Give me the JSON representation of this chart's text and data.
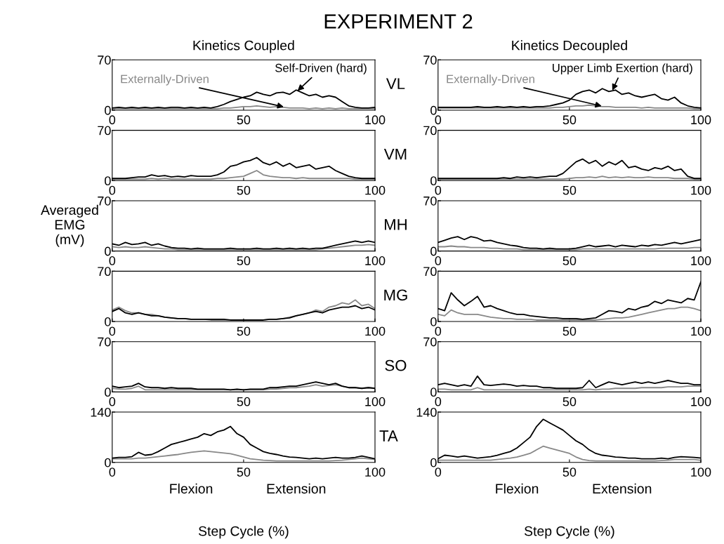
{
  "chart_data": [
    {
      "type": "line",
      "title": "EXPERIMENT 2",
      "subtitle": "Kinetics Coupled",
      "x": [
        0,
        2.5,
        5,
        7.5,
        10,
        12.5,
        15,
        17.5,
        20,
        22.5,
        25,
        27.5,
        30,
        32.5,
        35,
        37.5,
        40,
        42.5,
        45,
        47.5,
        50,
        52.5,
        55,
        57.5,
        60,
        62.5,
        65,
        67.5,
        70,
        72.5,
        75,
        77.5,
        80,
        82.5,
        85,
        87.5,
        90,
        92.5,
        95,
        97.5,
        100
      ],
      "xlim": [
        0,
        100
      ],
      "xticks": [
        0,
        50,
        100
      ],
      "ylim": [
        0,
        70
      ],
      "yticks": [
        0,
        70
      ],
      "grid": false,
      "legend": false,
      "annotations": [
        {
          "text": "Externally-Driven",
          "x": 66,
          "y": 4
        },
        {
          "text": "Self-Driven (hard)",
          "x": 70,
          "y": 25
        }
      ],
      "series": [
        {
          "color": "#888888",
          "values": [
            2,
            2,
            2,
            2,
            2,
            2,
            2,
            2,
            2,
            2,
            2,
            2,
            2,
            2,
            2,
            2,
            2,
            3,
            3,
            4,
            5,
            5,
            6,
            5,
            4,
            5,
            4,
            3,
            3,
            3,
            2,
            3,
            2,
            3,
            2,
            3,
            2,
            2,
            2,
            2,
            2
          ]
        },
        {
          "color": "#000000",
          "values": [
            3,
            4,
            3,
            4,
            3,
            4,
            3,
            4,
            3,
            4,
            4,
            3,
            4,
            3,
            4,
            3,
            5,
            8,
            12,
            15,
            18,
            20,
            25,
            22,
            20,
            24,
            25,
            22,
            28,
            24,
            20,
            22,
            18,
            20,
            18,
            12,
            6,
            4,
            3,
            3,
            4
          ]
        }
      ]
    },
    {
      "type": "line",
      "subtitle": "Kinetics Decoupled",
      "ylabel": "VL",
      "x": [
        0,
        2.5,
        5,
        7.5,
        10,
        12.5,
        15,
        17.5,
        20,
        22.5,
        25,
        27.5,
        30,
        32.5,
        35,
        37.5,
        40,
        42.5,
        45,
        47.5,
        50,
        52.5,
        55,
        57.5,
        60,
        62.5,
        65,
        67.5,
        70,
        72.5,
        75,
        77.5,
        80,
        82.5,
        85,
        87.5,
        90,
        92.5,
        95,
        97.5,
        100
      ],
      "xlim": [
        0,
        100
      ],
      "xticks": [
        0,
        50,
        100
      ],
      "ylim": [
        0,
        70
      ],
      "yticks": [
        0,
        70
      ],
      "grid": false,
      "legend": false,
      "annotations": [
        {
          "text": "Externally-Driven",
          "x": 63,
          "y": 5
        },
        {
          "text": "Upper Limb Exertion (hard)",
          "x": 66,
          "y": 25
        }
      ],
      "series": [
        {
          "color": "#888888",
          "values": [
            3,
            3,
            3,
            3,
            3,
            3,
            3,
            3,
            3,
            3,
            3,
            3,
            3,
            3,
            3,
            3,
            3,
            3,
            4,
            4,
            5,
            6,
            6,
            7,
            6,
            5,
            5,
            4,
            4,
            4,
            4,
            3,
            4,
            3,
            3,
            3,
            3,
            3,
            3,
            2,
            2
          ]
        },
        {
          "color": "#000000",
          "values": [
            4,
            4,
            4,
            4,
            4,
            4,
            5,
            4,
            4,
            5,
            4,
            5,
            4,
            5,
            4,
            5,
            5,
            6,
            8,
            10,
            14,
            22,
            26,
            28,
            24,
            30,
            26,
            28,
            22,
            24,
            20,
            18,
            20,
            22,
            16,
            14,
            18,
            10,
            6,
            4,
            3
          ]
        }
      ]
    },
    {
      "type": "line",
      "x": [
        0,
        2.5,
        5,
        7.5,
        10,
        12.5,
        15,
        17.5,
        20,
        22.5,
        25,
        27.5,
        30,
        32.5,
        35,
        37.5,
        40,
        42.5,
        45,
        47.5,
        50,
        52.5,
        55,
        57.5,
        60,
        62.5,
        65,
        67.5,
        70,
        72.5,
        75,
        77.5,
        80,
        82.5,
        85,
        87.5,
        90,
        92.5,
        95,
        97.5,
        100
      ],
      "xlim": [
        0,
        100
      ],
      "xticks": [
        0,
        50,
        100
      ],
      "ylim": [
        0,
        70
      ],
      "yticks": [
        0,
        70
      ],
      "grid": false,
      "legend": false,
      "series": [
        {
          "color": "#888888",
          "values": [
            2,
            2,
            2,
            2,
            2,
            2,
            3,
            2,
            3,
            2,
            2,
            2,
            2,
            2,
            2,
            2,
            3,
            3,
            4,
            5,
            6,
            10,
            14,
            8,
            6,
            5,
            4,
            4,
            3,
            4,
            3,
            3,
            3,
            3,
            3,
            3,
            3,
            2,
            2,
            2,
            2
          ]
        },
        {
          "color": "#000000",
          "values": [
            3,
            3,
            3,
            4,
            5,
            5,
            8,
            6,
            7,
            5,
            6,
            5,
            7,
            6,
            6,
            6,
            8,
            12,
            20,
            22,
            26,
            28,
            32,
            25,
            22,
            26,
            20,
            24,
            18,
            20,
            22,
            16,
            18,
            20,
            14,
            10,
            6,
            4,
            3,
            3,
            3
          ]
        }
      ]
    },
    {
      "type": "line",
      "ylabel": "VM",
      "x": [
        0,
        2.5,
        5,
        7.5,
        10,
        12.5,
        15,
        17.5,
        20,
        22.5,
        25,
        27.5,
        30,
        32.5,
        35,
        37.5,
        40,
        42.5,
        45,
        47.5,
        50,
        52.5,
        55,
        57.5,
        60,
        62.5,
        65,
        67.5,
        70,
        72.5,
        75,
        77.5,
        80,
        82.5,
        85,
        87.5,
        90,
        92.5,
        95,
        97.5,
        100
      ],
      "xlim": [
        0,
        100
      ],
      "xticks": [
        0,
        50,
        100
      ],
      "ylim": [
        0,
        70
      ],
      "yticks": [
        0,
        70
      ],
      "grid": false,
      "legend": false,
      "series": [
        {
          "color": "#888888",
          "values": [
            2,
            2,
            2,
            2,
            2,
            2,
            2,
            2,
            2,
            2,
            2,
            2,
            2,
            2,
            2,
            2,
            2,
            2,
            2,
            2,
            3,
            4,
            4,
            5,
            4,
            6,
            4,
            5,
            4,
            5,
            4,
            4,
            5,
            4,
            4,
            4,
            3,
            3,
            3,
            2,
            2
          ]
        },
        {
          "color": "#000000",
          "values": [
            3,
            3,
            3,
            3,
            3,
            3,
            3,
            3,
            3,
            3,
            4,
            3,
            5,
            4,
            5,
            4,
            5,
            6,
            6,
            10,
            18,
            26,
            30,
            24,
            28,
            20,
            26,
            22,
            28,
            18,
            20,
            16,
            14,
            18,
            16,
            20,
            14,
            16,
            6,
            3,
            3
          ]
        }
      ]
    },
    {
      "type": "line",
      "ylabel": "Averaged\nEMG\n(mV)",
      "x": [
        0,
        2.5,
        5,
        7.5,
        10,
        12.5,
        15,
        17.5,
        20,
        22.5,
        25,
        27.5,
        30,
        32.5,
        35,
        37.5,
        40,
        42.5,
        45,
        47.5,
        50,
        52.5,
        55,
        57.5,
        60,
        62.5,
        65,
        67.5,
        70,
        72.5,
        75,
        77.5,
        80,
        82.5,
        85,
        87.5,
        90,
        92.5,
        95,
        97.5,
        100
      ],
      "xlim": [
        0,
        100
      ],
      "xticks": [
        0,
        50,
        100
      ],
      "ylim": [
        0,
        70
      ],
      "yticks": [
        0,
        70
      ],
      "grid": false,
      "legend": false,
      "series": [
        {
          "color": "#888888",
          "values": [
            6,
            5,
            6,
            5,
            5,
            6,
            5,
            4,
            3,
            3,
            2,
            2,
            2,
            2,
            2,
            2,
            2,
            2,
            2,
            2,
            2,
            2,
            2,
            2,
            2,
            2,
            2,
            2,
            2,
            2,
            2,
            2,
            3,
            4,
            5,
            6,
            7,
            8,
            8,
            9,
            8
          ]
        },
        {
          "color": "#000000",
          "values": [
            10,
            8,
            12,
            9,
            10,
            12,
            8,
            10,
            7,
            5,
            4,
            4,
            3,
            4,
            3,
            3,
            3,
            3,
            4,
            3,
            3,
            3,
            4,
            3,
            3,
            4,
            3,
            4,
            3,
            4,
            3,
            4,
            4,
            6,
            8,
            10,
            12,
            14,
            12,
            14,
            12
          ]
        }
      ]
    },
    {
      "type": "line",
      "ylabel": "MH",
      "x": [
        0,
        2.5,
        5,
        7.5,
        10,
        12.5,
        15,
        17.5,
        20,
        22.5,
        25,
        27.5,
        30,
        32.5,
        35,
        37.5,
        40,
        42.5,
        45,
        47.5,
        50,
        52.5,
        55,
        57.5,
        60,
        62.5,
        65,
        67.5,
        70,
        72.5,
        75,
        77.5,
        80,
        82.5,
        85,
        87.5,
        90,
        92.5,
        95,
        97.5,
        100
      ],
      "xlim": [
        0,
        100
      ],
      "xticks": [
        0,
        50,
        100
      ],
      "ylim": [
        0,
        70
      ],
      "yticks": [
        0,
        70
      ],
      "grid": false,
      "legend": false,
      "series": [
        {
          "color": "#888888",
          "values": [
            6,
            6,
            7,
            6,
            6,
            5,
            5,
            5,
            4,
            4,
            3,
            3,
            3,
            2,
            2,
            2,
            2,
            2,
            2,
            2,
            2,
            2,
            3,
            3,
            3,
            3,
            3,
            3,
            3,
            3,
            3,
            3,
            3,
            3,
            4,
            4,
            4,
            4,
            4,
            5,
            5
          ]
        },
        {
          "color": "#000000",
          "values": [
            12,
            15,
            18,
            20,
            16,
            20,
            18,
            14,
            15,
            12,
            10,
            8,
            7,
            5,
            4,
            4,
            3,
            4,
            3,
            3,
            3,
            4,
            6,
            8,
            6,
            7,
            8,
            6,
            8,
            7,
            6,
            8,
            7,
            9,
            8,
            10,
            12,
            10,
            12,
            14,
            16
          ]
        }
      ]
    },
    {
      "type": "line",
      "x": [
        0,
        2.5,
        5,
        7.5,
        10,
        12.5,
        15,
        17.5,
        20,
        22.5,
        25,
        27.5,
        30,
        32.5,
        35,
        37.5,
        40,
        42.5,
        45,
        47.5,
        50,
        52.5,
        55,
        57.5,
        60,
        62.5,
        65,
        67.5,
        70,
        72.5,
        75,
        77.5,
        80,
        82.5,
        85,
        87.5,
        90,
        92.5,
        95,
        97.5,
        100
      ],
      "xlim": [
        0,
        100
      ],
      "xticks": [
        0,
        50,
        100
      ],
      "ylim": [
        0,
        70
      ],
      "yticks": [
        0,
        70
      ],
      "grid": false,
      "legend": false,
      "series": [
        {
          "color": "#888888",
          "values": [
            16,
            20,
            15,
            12,
            12,
            10,
            10,
            8,
            6,
            5,
            4,
            4,
            3,
            3,
            3,
            2,
            2,
            2,
            2,
            2,
            2,
            2,
            2,
            2,
            3,
            3,
            4,
            6,
            8,
            10,
            12,
            16,
            14,
            20,
            22,
            26,
            24,
            30,
            22,
            24,
            18
          ]
        },
        {
          "color": "#000000",
          "values": [
            14,
            18,
            12,
            10,
            12,
            10,
            8,
            8,
            6,
            5,
            4,
            4,
            3,
            3,
            3,
            3,
            3,
            3,
            2,
            2,
            2,
            2,
            2,
            2,
            3,
            3,
            4,
            5,
            8,
            10,
            12,
            14,
            12,
            16,
            18,
            20,
            20,
            22,
            18,
            20,
            16
          ]
        }
      ]
    },
    {
      "type": "line",
      "ylabel": "MG",
      "x": [
        0,
        2.5,
        5,
        7.5,
        10,
        12.5,
        15,
        17.5,
        20,
        22.5,
        25,
        27.5,
        30,
        32.5,
        35,
        37.5,
        40,
        42.5,
        45,
        47.5,
        50,
        52.5,
        55,
        57.5,
        60,
        62.5,
        65,
        67.5,
        70,
        72.5,
        75,
        77.5,
        80,
        82.5,
        85,
        87.5,
        90,
        92.5,
        95,
        97.5,
        100
      ],
      "xlim": [
        0,
        100
      ],
      "xticks": [
        0,
        50,
        100
      ],
      "ylim": [
        0,
        70
      ],
      "yticks": [
        0,
        70
      ],
      "grid": false,
      "legend": false,
      "series": [
        {
          "color": "#888888",
          "values": [
            10,
            8,
            16,
            12,
            10,
            10,
            10,
            8,
            6,
            5,
            4,
            4,
            3,
            3,
            3,
            2,
            2,
            2,
            2,
            2,
            2,
            2,
            2,
            2,
            2,
            3,
            4,
            5,
            5,
            6,
            8,
            10,
            12,
            14,
            16,
            18,
            18,
            20,
            20,
            18,
            15
          ]
        },
        {
          "color": "#000000",
          "values": [
            18,
            15,
            40,
            30,
            22,
            28,
            35,
            20,
            22,
            18,
            15,
            12,
            10,
            10,
            8,
            7,
            6,
            5,
            5,
            4,
            4,
            4,
            3,
            4,
            5,
            10,
            15,
            14,
            12,
            18,
            16,
            20,
            22,
            28,
            25,
            30,
            28,
            26,
            32,
            30,
            55
          ]
        }
      ]
    },
    {
      "type": "line",
      "x": [
        0,
        2.5,
        5,
        7.5,
        10,
        12.5,
        15,
        17.5,
        20,
        22.5,
        25,
        27.5,
        30,
        32.5,
        35,
        37.5,
        40,
        42.5,
        45,
        47.5,
        50,
        52.5,
        55,
        57.5,
        60,
        62.5,
        65,
        67.5,
        70,
        72.5,
        75,
        77.5,
        80,
        82.5,
        85,
        87.5,
        90,
        92.5,
        95,
        97.5,
        100
      ],
      "xlim": [
        0,
        100
      ],
      "xticks": [
        0,
        50,
        100
      ],
      "ylim": [
        0,
        70
      ],
      "yticks": [
        0,
        70
      ],
      "grid": false,
      "legend": false,
      "series": [
        {
          "color": "#888888",
          "values": [
            5,
            4,
            4,
            5,
            8,
            3,
            3,
            3,
            3,
            3,
            3,
            3,
            3,
            3,
            3,
            3,
            3,
            3,
            3,
            3,
            3,
            3,
            3,
            3,
            4,
            4,
            5,
            6,
            6,
            7,
            8,
            10,
            8,
            9,
            10,
            8,
            6,
            6,
            5,
            6,
            5
          ]
        },
        {
          "color": "#000000",
          "values": [
            8,
            6,
            7,
            8,
            12,
            7,
            6,
            6,
            5,
            6,
            5,
            5,
            5,
            4,
            4,
            4,
            4,
            4,
            3,
            4,
            3,
            4,
            4,
            4,
            6,
            6,
            7,
            8,
            8,
            10,
            12,
            14,
            12,
            10,
            12,
            8,
            6,
            6,
            5,
            6,
            5
          ]
        }
      ]
    },
    {
      "type": "line",
      "ylabel": "SO",
      "x": [
        0,
        2.5,
        5,
        7.5,
        10,
        12.5,
        15,
        17.5,
        20,
        22.5,
        25,
        27.5,
        30,
        32.5,
        35,
        37.5,
        40,
        42.5,
        45,
        47.5,
        50,
        52.5,
        55,
        57.5,
        60,
        62.5,
        65,
        67.5,
        70,
        72.5,
        75,
        77.5,
        80,
        82.5,
        85,
        87.5,
        90,
        92.5,
        95,
        97.5,
        100
      ],
      "xlim": [
        0,
        100
      ],
      "xticks": [
        0,
        50,
        100
      ],
      "ylim": [
        0,
        70
      ],
      "yticks": [
        0,
        70
      ],
      "grid": false,
      "legend": false,
      "series": [
        {
          "color": "#888888",
          "values": [
            4,
            4,
            3,
            3,
            3,
            3,
            6,
            3,
            3,
            3,
            3,
            3,
            3,
            3,
            3,
            3,
            3,
            3,
            3,
            3,
            3,
            3,
            3,
            4,
            3,
            4,
            4,
            5,
            5,
            5,
            5,
            6,
            6,
            6,
            6,
            7,
            7,
            7,
            8,
            8,
            8
          ]
        },
        {
          "color": "#000000",
          "values": [
            10,
            12,
            10,
            8,
            10,
            8,
            22,
            10,
            9,
            10,
            11,
            10,
            8,
            9,
            8,
            8,
            6,
            6,
            5,
            5,
            5,
            5,
            6,
            16,
            6,
            10,
            14,
            12,
            10,
            12,
            14,
            12,
            14,
            12,
            14,
            16,
            14,
            12,
            12,
            10,
            10
          ]
        }
      ]
    },
    {
      "type": "line",
      "xlabel": "Step Cycle (%)",
      "x": [
        0,
        2.5,
        5,
        7.5,
        10,
        12.5,
        15,
        17.5,
        20,
        22.5,
        25,
        27.5,
        30,
        32.5,
        35,
        37.5,
        40,
        42.5,
        45,
        47.5,
        50,
        52.5,
        55,
        57.5,
        60,
        62.5,
        65,
        67.5,
        70,
        72.5,
        75,
        77.5,
        80,
        82.5,
        85,
        87.5,
        90,
        92.5,
        95,
        97.5,
        100
      ],
      "xlim": [
        0,
        100
      ],
      "xticks": [
        0,
        50,
        100
      ],
      "ylim": [
        0,
        140
      ],
      "yticks": [
        0,
        140
      ],
      "grid": false,
      "legend": false,
      "annotations": [
        "Flexion",
        "Extension"
      ],
      "series": [
        {
          "color": "#888888",
          "values": [
            10,
            10,
            10,
            10,
            12,
            12,
            14,
            16,
            18,
            20,
            22,
            25,
            28,
            30,
            32,
            30,
            28,
            26,
            24,
            20,
            15,
            10,
            8,
            6,
            5,
            4,
            4,
            4,
            4,
            4,
            4,
            4,
            4,
            4,
            5,
            6,
            8,
            10,
            12,
            10,
            8
          ]
        },
        {
          "color": "#000000",
          "values": [
            12,
            14,
            14,
            16,
            28,
            20,
            22,
            30,
            40,
            50,
            55,
            60,
            65,
            70,
            80,
            75,
            85,
            90,
            100,
            80,
            70,
            50,
            40,
            30,
            25,
            22,
            18,
            15,
            14,
            12,
            10,
            12,
            10,
            12,
            14,
            12,
            12,
            14,
            18,
            14,
            10
          ]
        }
      ]
    },
    {
      "type": "line",
      "ylabel": "TA",
      "xlabel": "Step Cycle (%)",
      "x": [
        0,
        2.5,
        5,
        7.5,
        10,
        12.5,
        15,
        17.5,
        20,
        22.5,
        25,
        27.5,
        30,
        32.5,
        35,
        37.5,
        40,
        42.5,
        45,
        47.5,
        50,
        52.5,
        55,
        57.5,
        60,
        62.5,
        65,
        67.5,
        70,
        72.5,
        75,
        77.5,
        80,
        82.5,
        85,
        87.5,
        90,
        92.5,
        95,
        97.5,
        100
      ],
      "xlim": [
        0,
        100
      ],
      "xticks": [
        0,
        50,
        100
      ],
      "ylim": [
        0,
        140
      ],
      "yticks": [
        0,
        140
      ],
      "grid": false,
      "legend": false,
      "annotations": [
        "Flexion",
        "Extension"
      ],
      "series": [
        {
          "color": "#888888",
          "values": [
            6,
            6,
            6,
            6,
            6,
            6,
            6,
            6,
            6,
            8,
            10,
            12,
            15,
            20,
            25,
            35,
            45,
            40,
            35,
            30,
            25,
            15,
            8,
            5,
            4,
            4,
            4,
            4,
            4,
            4,
            4,
            4,
            4,
            4,
            5,
            6,
            8,
            8,
            8,
            8,
            6
          ]
        },
        {
          "color": "#000000",
          "values": [
            10,
            20,
            18,
            15,
            18,
            15,
            12,
            14,
            16,
            20,
            25,
            30,
            40,
            55,
            70,
            100,
            120,
            110,
            100,
            90,
            75,
            60,
            50,
            35,
            25,
            20,
            18,
            15,
            14,
            12,
            12,
            10,
            10,
            10,
            12,
            10,
            14,
            16,
            15,
            14,
            12
          ]
        }
      ]
    }
  ]
}
